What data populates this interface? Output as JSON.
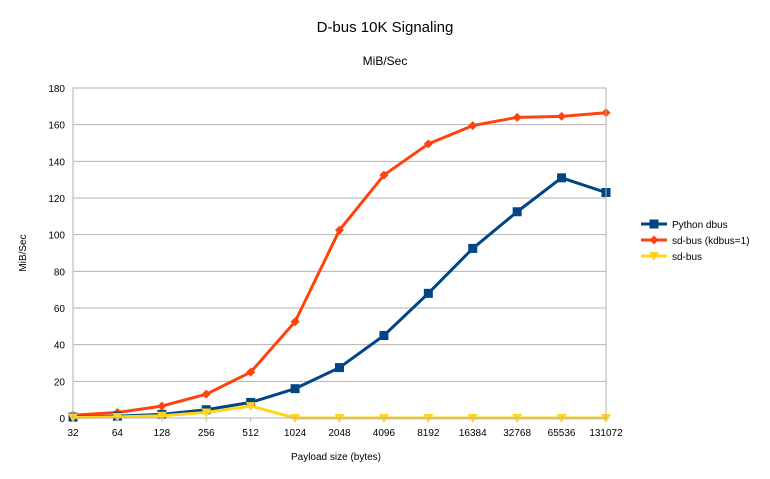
{
  "chart_data": {
    "type": "line",
    "title": "D-bus 10K Signaling",
    "subtitle": "MiB/Sec",
    "xlabel": "Payload size (bytes)",
    "ylabel": "MiB/Sec",
    "ylim": [
      0,
      180
    ],
    "yticks": [
      0,
      20,
      40,
      60,
      80,
      100,
      120,
      140,
      160,
      180
    ],
    "categories": [
      "32",
      "64",
      "128",
      "256",
      "512",
      "1024",
      "2048",
      "4096",
      "8192",
      "16384",
      "32768",
      "65536",
      "131072"
    ],
    "grid": "horizontal",
    "legend_position": "right",
    "series": [
      {
        "name": "Python dbus",
        "color": "#004586",
        "marker": "square",
        "values": [
          0.5,
          1,
          2,
          4.5,
          8.5,
          16,
          27.5,
          45,
          68,
          92.5,
          112.5,
          131,
          123
        ]
      },
      {
        "name": "sd-bus (kdbus=1)",
        "color": "#ff420e",
        "marker": "diamond",
        "values": [
          1.5,
          3,
          6.5,
          13,
          25,
          52.5,
          102.5,
          132.5,
          149.5,
          159.5,
          164,
          164.5,
          166.5
        ]
      },
      {
        "name": "sd-bus",
        "color": "#ffd320",
        "marker": "triangle-down",
        "values": [
          0.3,
          0.6,
          1.2,
          3,
          6.5,
          0,
          0,
          0,
          0,
          0,
          0,
          0,
          0
        ]
      }
    ]
  }
}
